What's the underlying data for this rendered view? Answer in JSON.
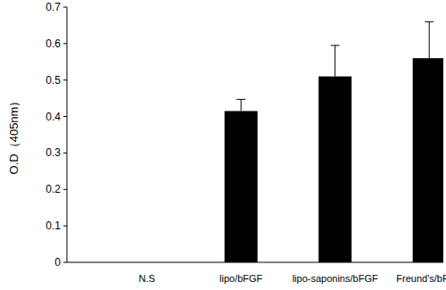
{
  "chart_data": {
    "type": "bar",
    "y_label": "O.D（405nm）",
    "categories": [
      "N.S",
      "lipo/bFGF",
      "lipo-saponins/bFGF",
      "Freund's/bFGF"
    ],
    "values": [
      0,
      0.415,
      0.51,
      0.56
    ],
    "errors": [
      0,
      0.032,
      0.085,
      0.1
    ],
    "color": "#000000",
    "ylim": [
      0,
      0.7
    ],
    "yticks": [
      0,
      0.1,
      0.2,
      0.3,
      0.4,
      0.5,
      0.6,
      0.7
    ],
    "grid": false
  }
}
